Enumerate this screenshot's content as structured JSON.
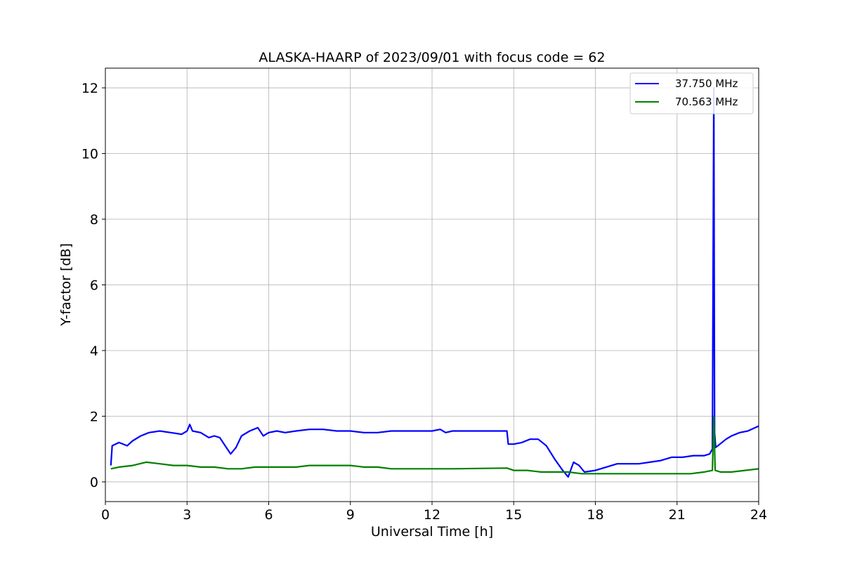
{
  "chart_data": {
    "type": "line",
    "title": "ALASKA-HAARP of 2023/09/01 with focus code = 62",
    "xlabel": "Universal Time [h]",
    "ylabel": "Y-factor [dB]",
    "xlim": [
      0,
      24
    ],
    "ylim": [
      -0.6,
      12.6
    ],
    "xticks": [
      0,
      3,
      6,
      9,
      12,
      15,
      18,
      21,
      24
    ],
    "yticks": [
      0,
      2,
      4,
      6,
      8,
      10,
      12
    ],
    "grid": true,
    "legend_position": "top-right",
    "series": [
      {
        "name": "37.750 MHz",
        "color": "#0000ff",
        "x": [
          0.2,
          0.25,
          0.5,
          0.8,
          1.0,
          1.3,
          1.6,
          2.0,
          2.4,
          2.8,
          3.0,
          3.1,
          3.2,
          3.5,
          3.8,
          4.0,
          4.2,
          4.4,
          4.6,
          4.8,
          5.0,
          5.3,
          5.6,
          5.8,
          6.0,
          6.3,
          6.6,
          7.0,
          7.5,
          8.0,
          8.5,
          9.0,
          9.5,
          10.0,
          10.5,
          11.0,
          11.5,
          12.0,
          12.3,
          12.5,
          12.75,
          14.75,
          14.8,
          15.0,
          15.3,
          15.6,
          15.9,
          16.2,
          16.5,
          16.8,
          17.0,
          17.2,
          17.4,
          17.6,
          18.0,
          18.4,
          18.8,
          19.2,
          19.6,
          20.0,
          20.4,
          20.8,
          21.2,
          21.6,
          22.0,
          22.2,
          22.3,
          22.35,
          22.38,
          22.42,
          22.5,
          22.8,
          23.0,
          23.3,
          23.6,
          24.0
        ],
        "y": [
          0.5,
          1.1,
          1.2,
          1.1,
          1.25,
          1.4,
          1.5,
          1.55,
          1.5,
          1.45,
          1.55,
          1.75,
          1.55,
          1.5,
          1.35,
          1.4,
          1.35,
          1.1,
          0.85,
          1.05,
          1.4,
          1.55,
          1.65,
          1.4,
          1.5,
          1.55,
          1.5,
          1.55,
          1.6,
          1.6,
          1.55,
          1.55,
          1.5,
          1.5,
          1.55,
          1.55,
          1.55,
          1.55,
          1.6,
          1.5,
          1.55,
          1.55,
          1.15,
          1.15,
          1.2,
          1.3,
          1.3,
          1.1,
          0.7,
          0.35,
          0.15,
          0.6,
          0.5,
          0.3,
          0.35,
          0.45,
          0.55,
          0.55,
          0.55,
          0.6,
          0.65,
          0.75,
          0.75,
          0.8,
          0.8,
          0.85,
          1.0,
          12.0,
          1.5,
          1.05,
          1.1,
          1.3,
          1.4,
          1.5,
          1.55,
          1.7
        ]
      },
      {
        "name": "70.563 MHz",
        "color": "#008000",
        "x": [
          0.2,
          0.5,
          1.0,
          1.5,
          2.0,
          2.5,
          3.0,
          3.5,
          4.0,
          4.5,
          5.0,
          5.5,
          6.0,
          6.5,
          7.0,
          7.5,
          8.0,
          8.5,
          9.0,
          9.5,
          10.0,
          10.5,
          11.0,
          11.5,
          12.0,
          12.5,
          12.75,
          14.75,
          15.0,
          15.5,
          16.0,
          16.5,
          17.0,
          17.5,
          18.0,
          18.5,
          19.0,
          19.5,
          20.0,
          20.5,
          21.0,
          21.5,
          22.0,
          22.3,
          22.35,
          22.4,
          22.6,
          23.0,
          23.5,
          24.0
        ],
        "y": [
          0.4,
          0.45,
          0.5,
          0.6,
          0.55,
          0.5,
          0.5,
          0.45,
          0.45,
          0.4,
          0.4,
          0.45,
          0.45,
          0.45,
          0.45,
          0.5,
          0.5,
          0.5,
          0.5,
          0.45,
          0.45,
          0.4,
          0.4,
          0.4,
          0.4,
          0.4,
          0.4,
          0.42,
          0.35,
          0.35,
          0.3,
          0.3,
          0.3,
          0.25,
          0.25,
          0.25,
          0.25,
          0.25,
          0.25,
          0.25,
          0.25,
          0.25,
          0.3,
          0.35,
          2.0,
          0.35,
          0.3,
          0.3,
          0.35,
          0.4
        ]
      }
    ]
  }
}
